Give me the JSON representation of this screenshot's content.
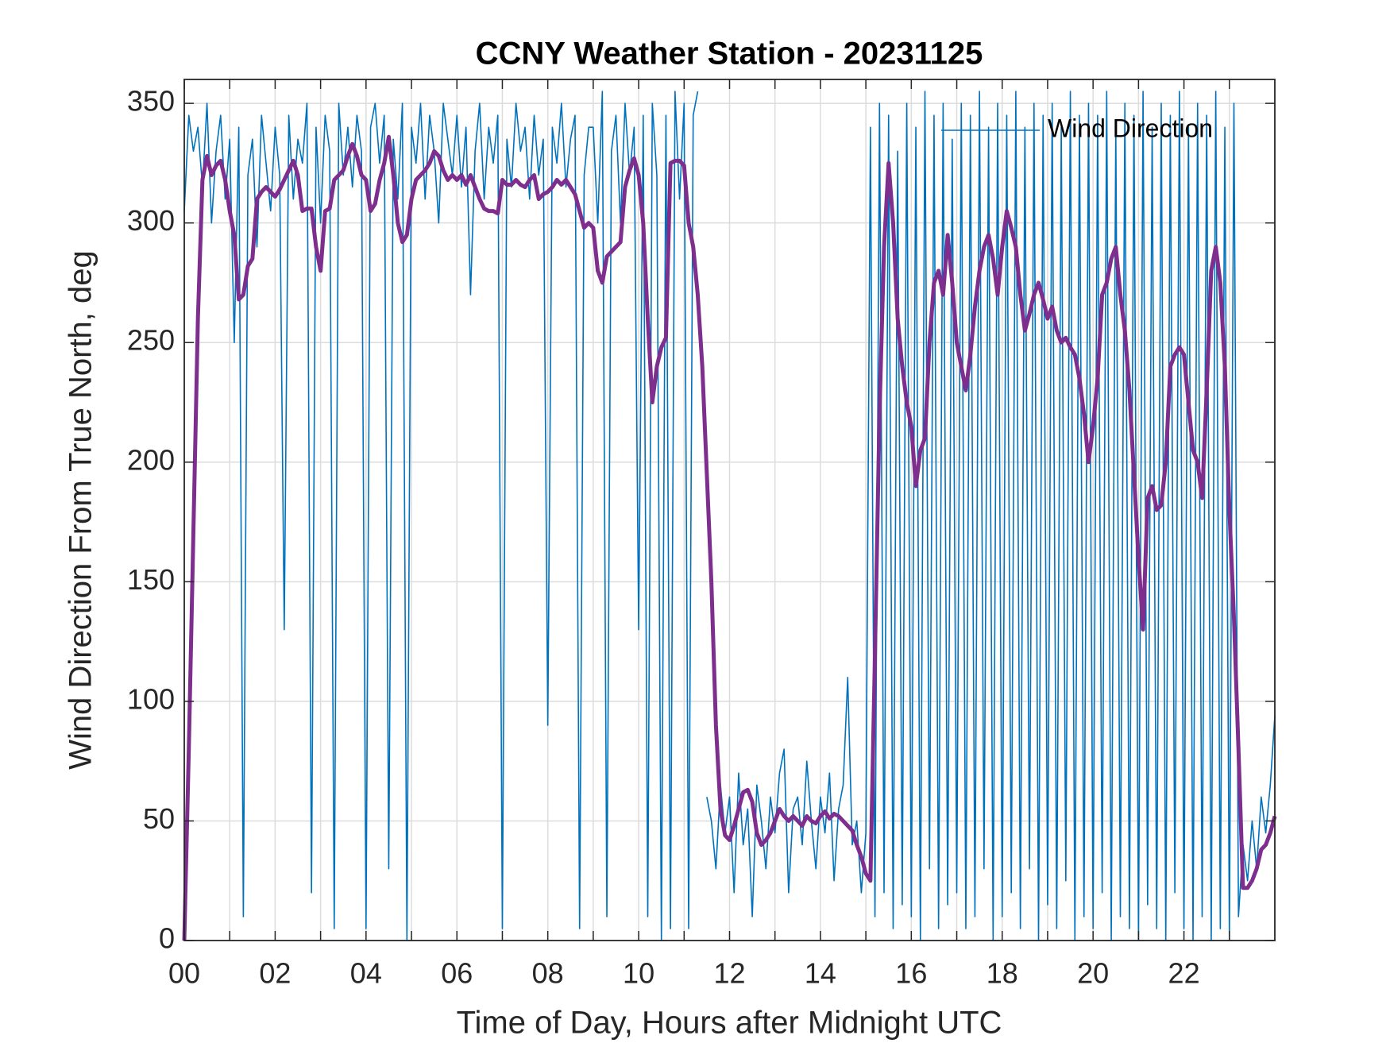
{
  "chart_data": {
    "type": "line",
    "title": "CCNY Weather Station - 20231125",
    "x_label": "Time of Day, Hours after Midnight UTC",
    "y_label": "Wind Direction From True North, deg",
    "xlim": [
      0,
      24
    ],
    "ylim": [
      0,
      360
    ],
    "xticks": [
      {
        "value": 0,
        "label": "00"
      },
      {
        "value": 2,
        "label": "02"
      },
      {
        "value": 4,
        "label": "04"
      },
      {
        "value": 6,
        "label": "06"
      },
      {
        "value": 8,
        "label": "08"
      },
      {
        "value": 10,
        "label": "10"
      },
      {
        "value": 12,
        "label": "12"
      },
      {
        "value": 14,
        "label": "14"
      },
      {
        "value": 16,
        "label": "16"
      },
      {
        "value": 18,
        "label": "18"
      },
      {
        "value": 20,
        "label": "20"
      },
      {
        "value": 22,
        "label": "22"
      }
    ],
    "xminorticks": [
      1,
      3,
      5,
      7,
      9,
      11,
      13,
      15,
      17,
      19,
      21,
      23
    ],
    "yticks": [
      0,
      50,
      100,
      150,
      200,
      250,
      300,
      350
    ],
    "grid": true,
    "legend": "northeast",
    "x": [
      0,
      0.1,
      0.2,
      0.3,
      0.4,
      0.5,
      0.6,
      0.7,
      0.8,
      0.9,
      1,
      1.1,
      1.2,
      1.3,
      1.4,
      1.5,
      1.6,
      1.7,
      1.8,
      1.9,
      2,
      2.1,
      2.2,
      2.3,
      2.4,
      2.5,
      2.6,
      2.7,
      2.8,
      2.9,
      3,
      3.1,
      3.2,
      3.3,
      3.4,
      3.5,
      3.6,
      3.7,
      3.8,
      3.9,
      4,
      4.1,
      4.2,
      4.3,
      4.4,
      4.5,
      4.6,
      4.7,
      4.8,
      4.9,
      5,
      5.1,
      5.2,
      5.3,
      5.4,
      5.5,
      5.6,
      5.7,
      5.8,
      5.9,
      6,
      6.1,
      6.2,
      6.3,
      6.4,
      6.5,
      6.6,
      6.7,
      6.8,
      6.9,
      7,
      7.1,
      7.2,
      7.3,
      7.4,
      7.5,
      7.6,
      7.7,
      7.8,
      7.9,
      8,
      8.1,
      8.2,
      8.3,
      8.4,
      8.5,
      8.6,
      8.7,
      8.8,
      8.9,
      9,
      9.1,
      9.2,
      9.3,
      9.4,
      9.5,
      9.6,
      9.7,
      9.8,
      9.9,
      10,
      10.1,
      10.2,
      10.3,
      10.4,
      10.5,
      10.6,
      10.7,
      10.8,
      10.9,
      11,
      11.1,
      11.2,
      11.3,
      11.4,
      11.5,
      11.6,
      11.7,
      11.8,
      11.9,
      12,
      12.1,
      12.2,
      12.3,
      12.4,
      12.5,
      12.6,
      12.7,
      12.8,
      12.9,
      13,
      13.1,
      13.2,
      13.3,
      13.4,
      13.5,
      13.6,
      13.7,
      13.8,
      13.9,
      14,
      14.1,
      14.2,
      14.3,
      14.4,
      14.5,
      14.6,
      14.7,
      14.8,
      14.9,
      15,
      15.1,
      15.2,
      15.3,
      15.4,
      15.5,
      15.6,
      15.7,
      15.8,
      15.9,
      16,
      16.1,
      16.2,
      16.3,
      16.4,
      16.5,
      16.6,
      16.7,
      16.8,
      16.9,
      17,
      17.1,
      17.2,
      17.3,
      17.4,
      17.5,
      17.6,
      17.7,
      17.8,
      17.9,
      18,
      18.1,
      18.2,
      18.3,
      18.4,
      18.5,
      18.6,
      18.7,
      18.8,
      18.9,
      19,
      19.1,
      19.2,
      19.3,
      19.4,
      19.5,
      19.6,
      19.7,
      19.8,
      19.9,
      20,
      20.1,
      20.2,
      20.3,
      20.4,
      20.5,
      20.6,
      20.7,
      20.8,
      20.9,
      21,
      21.1,
      21.2,
      21.3,
      21.4,
      21.5,
      21.6,
      21.7,
      21.8,
      21.9,
      22,
      22.1,
      22.2,
      22.3,
      22.4,
      22.5,
      22.6,
      22.7,
      22.8,
      22.9,
      23,
      23.1,
      23.2,
      23.3,
      23.4,
      23.5,
      23.6,
      23.7,
      23.8,
      23.9,
      24
    ],
    "series": [
      {
        "name": "Wind Direction",
        "color": "#0072BD",
        "values": [
          305,
          345,
          330,
          340,
          315,
          350,
          300,
          330,
          345,
          310,
          335,
          250,
          340,
          10,
          320,
          335,
          290,
          345,
          325,
          305,
          340,
          320,
          130,
          345,
          310,
          335,
          325,
          350,
          20,
          340,
          300,
          345,
          330,
          5,
          350,
          320,
          340,
          315,
          345,
          330,
          5,
          340,
          350,
          325,
          345,
          30,
          335,
          310,
          350,
          0,
          340,
          325,
          350,
          310,
          345,
          330,
          300,
          350,
          335,
          320,
          345,
          315,
          340,
          270,
          330,
          350,
          310,
          340,
          325,
          345,
          5,
          335,
          315,
          350,
          330,
          340,
          310,
          345,
          320,
          335,
          90,
          340,
          325,
          350,
          315,
          335,
          345,
          5,
          320,
          340,
          340,
          300,
          355,
          10,
          330,
          345,
          300,
          350,
          320,
          340,
          130,
          345,
          10,
          350,
          320,
          0,
          345,
          5,
          355,
          310,
          350,
          5,
          345,
          355,
          null,
          60,
          50,
          30,
          65,
          45,
          60,
          20,
          70,
          40,
          55,
          10,
          65,
          50,
          30,
          60,
          45,
          70,
          80,
          20,
          55,
          60,
          40,
          75,
          50,
          30,
          60,
          45,
          70,
          25,
          55,
          65,
          110,
          40,
          50,
          20,
          45,
          340,
          10,
          350,
          20,
          345,
          5,
          330,
          15,
          350,
          10,
          340,
          0,
          355,
          30,
          345,
          5,
          350,
          15,
          335,
          20,
          350,
          5,
          345,
          10,
          355,
          30,
          340,
          0,
          350,
          10,
          345,
          20,
          355,
          5,
          340,
          30,
          350,
          0,
          345,
          15,
          350,
          5,
          340,
          25,
          355,
          0,
          345,
          10,
          350,
          5,
          345,
          20,
          355,
          0,
          340,
          10,
          350,
          5,
          345,
          0,
          355,
          15,
          340,
          5,
          350,
          0,
          345,
          20,
          355,
          5,
          340,
          0,
          350,
          10,
          345,
          0,
          355,
          5,
          340,
          0,
          350,
          10,
          40,
          25,
          50,
          30,
          60,
          45,
          65,
          94
        ]
      },
      {
        "color": "#7E2F8E",
        "values": [
          0,
          80,
          170,
          260,
          318,
          328,
          320,
          324,
          326,
          318,
          305,
          295,
          268,
          270,
          282,
          285,
          310,
          313,
          315,
          313,
          311,
          314,
          318,
          322,
          326,
          320,
          305,
          306,
          306,
          290,
          280,
          305,
          306,
          318,
          320,
          322,
          328,
          333,
          328,
          320,
          318,
          305,
          308,
          318,
          325,
          336,
          320,
          300,
          292,
          295,
          310,
          318,
          320,
          322,
          325,
          330,
          328,
          322,
          318,
          320,
          318,
          320,
          316,
          320,
          315,
          310,
          306,
          305,
          305,
          304,
          318,
          316,
          316,
          318,
          316,
          315,
          318,
          320,
          310,
          312,
          313,
          315,
          318,
          316,
          318,
          315,
          312,
          305,
          298,
          300,
          298,
          280,
          275,
          286,
          288,
          290,
          292,
          315,
          322,
          327,
          320,
          300,
          260,
          225,
          240,
          248,
          252,
          325,
          326,
          326,
          324,
          300,
          290,
          270,
          240,
          195,
          150,
          90,
          55,
          44,
          42,
          48,
          55,
          62,
          63,
          58,
          45,
          40,
          42,
          45,
          50,
          55,
          52,
          50,
          52,
          50,
          48,
          52,
          50,
          49,
          52,
          54,
          51,
          53,
          52,
          50,
          48,
          46,
          40,
          35,
          28,
          25,
          120,
          220,
          290,
          325,
          300,
          260,
          240,
          225,
          215,
          190,
          205,
          210,
          250,
          275,
          280,
          270,
          295,
          275,
          250,
          240,
          230,
          245,
          265,
          280,
          290,
          295,
          285,
          270,
          290,
          305,
          298,
          290,
          270,
          255,
          262,
          270,
          275,
          268,
          260,
          265,
          255,
          250,
          252,
          248,
          245,
          235,
          220,
          200,
          215,
          235,
          270,
          275,
          285,
          290,
          270,
          255,
          230,
          195,
          160,
          130,
          185,
          190,
          180,
          182,
          200,
          240,
          245,
          248,
          245,
          225,
          205,
          200,
          185,
          230,
          280,
          290,
          275,
          240,
          180,
          135,
          80,
          22,
          22,
          25,
          30,
          38,
          40,
          45,
          52
        ]
      }
    ]
  }
}
